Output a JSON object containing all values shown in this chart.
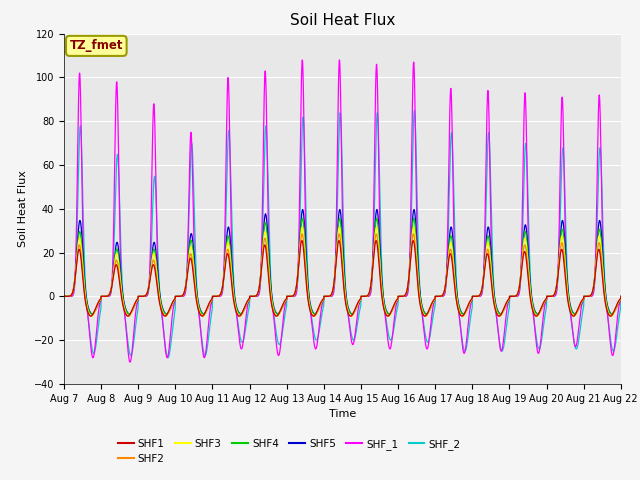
{
  "title": "Soil Heat Flux",
  "xlabel": "Time",
  "ylabel": "Soil Heat Flux",
  "ylim": [
    -40,
    120
  ],
  "yticks": [
    -40,
    -20,
    0,
    20,
    40,
    60,
    80,
    100,
    120
  ],
  "x_tick_labels": [
    "Aug 7",
    "Aug 8",
    "Aug 9",
    "Aug 10",
    "Aug 11",
    "Aug 12",
    "Aug 13",
    "Aug 14",
    "Aug 15",
    "Aug 16",
    "Aug 17",
    "Aug 18",
    "Aug 19",
    "Aug 20",
    "Aug 21",
    "Aug 22"
  ],
  "series_colors": {
    "SHF1": "#cc0000",
    "SHF2": "#ff8800",
    "SHF3": "#ffff00",
    "SHF4": "#00cc00",
    "SHF5": "#0000cc",
    "SHF_1": "#ff00ff",
    "SHF_2": "#00cccc"
  },
  "series_order": [
    "SHF_2",
    "SHF_1",
    "SHF5",
    "SHF4",
    "SHF3",
    "SHF2",
    "SHF1"
  ],
  "legend_order": [
    "SHF1",
    "SHF2",
    "SHF3",
    "SHF4",
    "SHF5",
    "SHF_1",
    "SHF_2"
  ],
  "annotation_text": "TZ_fmet",
  "annotation_color": "#8b0000",
  "annotation_bg": "#ffff99",
  "annotation_border": "#999900",
  "plot_bg": "#e8e8e8",
  "grid_color": "#ffffff",
  "title_fontsize": 11,
  "label_fontsize": 8,
  "tick_fontsize": 7,
  "n_days": 15,
  "points_per_day": 240
}
